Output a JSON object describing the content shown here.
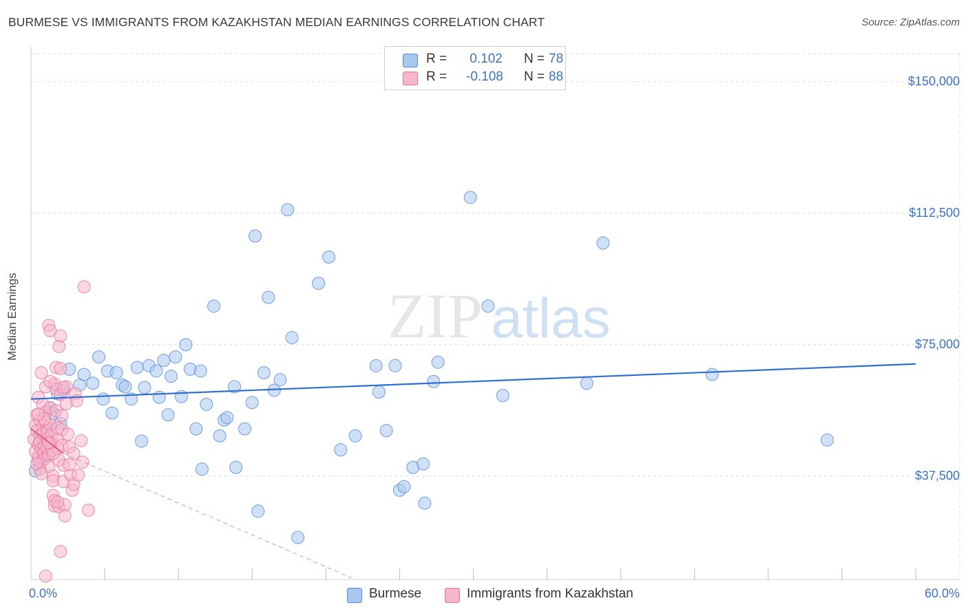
{
  "title": "BURMESE VS IMMIGRANTS FROM KAZAKHSTAN MEDIAN EARNINGS CORRELATION CHART",
  "source": "Source: ZipAtlas.com",
  "watermark": {
    "zip": "ZIP",
    "atlas": "atlas"
  },
  "colors": {
    "blue": "#4f86d6",
    "blue_fill": "#a9c8f0",
    "blue_line": "#2f6fcf",
    "pink": "#e8709a",
    "pink_fill": "#f6b7cb",
    "pink_line": "#e0608e",
    "grid": "#dddddd",
    "axis_text": "#3a74c5"
  },
  "legend": {
    "rows": [
      {
        "r_label": "R =",
        "r_value": " 0.102",
        "n_label": "N =",
        "n_value": "78",
        "series": "burmese"
      },
      {
        "r_label": "R =",
        "r_value": "-0.108",
        "n_label": "N =",
        "n_value": "88",
        "series": "kazakhstan"
      }
    ]
  },
  "bottom_legend": [
    {
      "label": "Burmese",
      "series": "burmese"
    },
    {
      "label": "Immigrants from Kazakhstan",
      "series": "kazakhstan"
    }
  ],
  "axes": {
    "x_min_label": "0.0%",
    "x_max_label": "60.0%",
    "y_label": "Median Earnings",
    "y_ticks": [
      {
        "value": 150000,
        "label": "$150,000"
      },
      {
        "value": 112500,
        "label": "$112,500"
      },
      {
        "value": 75000,
        "label": "$75,000"
      },
      {
        "value": 37500,
        "label": "$37,500"
      }
    ]
  },
  "chart_data": {
    "type": "scatter",
    "title": "BURMESE VS IMMIGRANTS FROM KAZAKHSTAN MEDIAN EARNINGS CORRELATION CHART",
    "xlabel": "",
    "ylabel": "Median Earnings",
    "xlim": [
      0,
      60
    ],
    "ylim": [
      8000,
      158000
    ],
    "series": [
      {
        "name": "Burmese",
        "color": "#4f86d6",
        "trend": {
          "x": [
            0,
            60
          ],
          "y": [
            59500,
            69500
          ]
        },
        "points": [
          [
            0.3,
            39000
          ],
          [
            0.5,
            42000
          ],
          [
            0.8,
            45000
          ],
          [
            1.0,
            48000
          ],
          [
            1.1,
            51500
          ],
          [
            1.2,
            44000
          ],
          [
            1.3,
            57000
          ],
          [
            1.5,
            55500
          ],
          [
            1.8,
            61000
          ],
          [
            2.0,
            52500
          ],
          [
            2.2,
            62000
          ],
          [
            2.6,
            68000
          ],
          [
            3.3,
            63500
          ],
          [
            3.6,
            66500
          ],
          [
            4.2,
            64000
          ],
          [
            4.6,
            71500
          ],
          [
            4.9,
            59500
          ],
          [
            5.2,
            67500
          ],
          [
            5.5,
            55500
          ],
          [
            5.8,
            67000
          ],
          [
            6.2,
            63500
          ],
          [
            6.4,
            63000
          ],
          [
            6.8,
            59500
          ],
          [
            7.2,
            68500
          ],
          [
            7.5,
            47500
          ],
          [
            7.7,
            62800
          ],
          [
            8.0,
            69000
          ],
          [
            8.5,
            67500
          ],
          [
            8.7,
            60000
          ],
          [
            9.0,
            70500
          ],
          [
            9.3,
            55000
          ],
          [
            9.5,
            66000
          ],
          [
            9.8,
            71500
          ],
          [
            10.2,
            60200
          ],
          [
            10.5,
            75000
          ],
          [
            10.8,
            68000
          ],
          [
            11.2,
            51000
          ],
          [
            11.5,
            67500
          ],
          [
            11.6,
            39500
          ],
          [
            11.9,
            58000
          ],
          [
            12.4,
            86000
          ],
          [
            12.8,
            49000
          ],
          [
            13.1,
            53500
          ],
          [
            13.3,
            54200
          ],
          [
            13.8,
            63000
          ],
          [
            13.9,
            40000
          ],
          [
            14.5,
            51000
          ],
          [
            15.0,
            58500
          ],
          [
            15.2,
            106000
          ],
          [
            15.4,
            27500
          ],
          [
            15.8,
            67000
          ],
          [
            16.1,
            88500
          ],
          [
            16.5,
            62000
          ],
          [
            16.9,
            65000
          ],
          [
            17.4,
            113500
          ],
          [
            17.7,
            77000
          ],
          [
            18.1,
            20000
          ],
          [
            19.5,
            92500
          ],
          [
            20.2,
            100000
          ],
          [
            21.0,
            45000
          ],
          [
            22.0,
            49000
          ],
          [
            23.4,
            69000
          ],
          [
            23.6,
            61500
          ],
          [
            24.1,
            50500
          ],
          [
            24.7,
            69000
          ],
          [
            25.0,
            33500
          ],
          [
            25.3,
            34500
          ],
          [
            25.9,
            40000
          ],
          [
            26.6,
            41000
          ],
          [
            26.7,
            29800
          ],
          [
            27.3,
            64500
          ],
          [
            27.6,
            70000
          ],
          [
            29.8,
            117000
          ],
          [
            31.0,
            86000
          ],
          [
            32.0,
            60500
          ],
          [
            37.7,
            64000
          ],
          [
            38.8,
            104000
          ],
          [
            46.2,
            66500
          ],
          [
            54.0,
            47800
          ]
        ]
      },
      {
        "name": "Immigrants from Kazakhstan",
        "color": "#e8709a",
        "trend": {
          "x": [
            0,
            2.2
          ],
          "y": [
            51000,
            44000
          ]
        },
        "trend_extended": {
          "x": [
            2.2,
            22.0
          ],
          "y": [
            44000,
            8000
          ]
        },
        "points": [
          [
            0.2,
            48000
          ],
          [
            0.3,
            52000
          ],
          [
            0.3,
            44500
          ],
          [
            0.4,
            55000
          ],
          [
            0.4,
            50500
          ],
          [
            0.5,
            46500
          ],
          [
            0.5,
            43000
          ],
          [
            0.5,
            60000
          ],
          [
            0.6,
            53500
          ],
          [
            0.6,
            49000
          ],
          [
            0.6,
            47200
          ],
          [
            0.7,
            45200
          ],
          [
            0.7,
            41500
          ],
          [
            0.7,
            67000
          ],
          [
            0.8,
            58000
          ],
          [
            0.8,
            51800
          ],
          [
            0.8,
            49700
          ],
          [
            0.9,
            46100
          ],
          [
            0.9,
            44300
          ],
          [
            0.9,
            42400
          ],
          [
            1.0,
            63000
          ],
          [
            1.0,
            55800
          ],
          [
            1.0,
            53000
          ],
          [
            1.1,
            50200
          ],
          [
            1.1,
            48100
          ],
          [
            1.1,
            45700
          ],
          [
            1.2,
            43600
          ],
          [
            1.2,
            40200
          ],
          [
            1.2,
            80500
          ],
          [
            1.3,
            79000
          ],
          [
            1.3,
            57000
          ],
          [
            1.3,
            52100
          ],
          [
            1.4,
            49300
          ],
          [
            1.4,
            46900
          ],
          [
            1.4,
            44900
          ],
          [
            1.5,
            37500
          ],
          [
            1.5,
            36200
          ],
          [
            1.5,
            32000
          ],
          [
            1.6,
            30500
          ],
          [
            1.6,
            29000
          ],
          [
            1.6,
            63800
          ],
          [
            1.7,
            62400
          ],
          [
            1.7,
            68500
          ],
          [
            1.7,
            56200
          ],
          [
            1.8,
            51300
          ],
          [
            1.8,
            47800
          ],
          [
            1.8,
            45500
          ],
          [
            1.9,
            42000
          ],
          [
            1.9,
            28800
          ],
          [
            1.9,
            74500
          ],
          [
            2.0,
            77500
          ],
          [
            2.0,
            68200
          ],
          [
            2.0,
            60800
          ],
          [
            2.1,
            54800
          ],
          [
            2.1,
            50800
          ],
          [
            2.1,
            46300
          ],
          [
            2.2,
            40600
          ],
          [
            2.2,
            36000
          ],
          [
            2.3,
            29300
          ],
          [
            2.3,
            26200
          ],
          [
            2.4,
            63000
          ],
          [
            2.4,
            58200
          ],
          [
            2.5,
            49500
          ],
          [
            2.6,
            45800
          ],
          [
            2.7,
            37900
          ],
          [
            2.8,
            33500
          ],
          [
            2.9,
            35200
          ],
          [
            3.0,
            61000
          ],
          [
            3.1,
            59000
          ],
          [
            3.2,
            37800
          ],
          [
            3.4,
            47600
          ],
          [
            3.5,
            41500
          ],
          [
            3.6,
            91500
          ],
          [
            3.9,
            27800
          ],
          [
            2.0,
            16000
          ],
          [
            1.0,
            9000
          ],
          [
            0.6,
            39500
          ],
          [
            1.5,
            43900
          ],
          [
            0.9,
            53800
          ],
          [
            1.2,
            47000
          ],
          [
            0.4,
            41000
          ],
          [
            2.6,
            40800
          ],
          [
            1.8,
            30100
          ],
          [
            0.7,
            38200
          ],
          [
            2.9,
            44000
          ],
          [
            1.3,
            64500
          ],
          [
            0.5,
            55200
          ],
          [
            2.2,
            62800
          ]
        ]
      }
    ]
  }
}
